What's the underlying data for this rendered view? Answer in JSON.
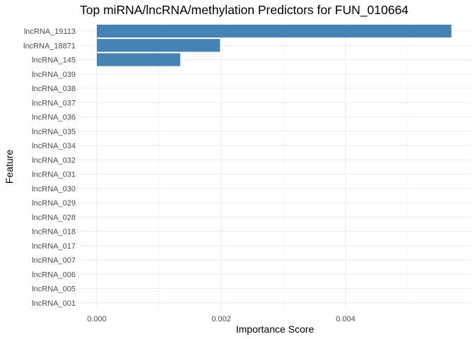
{
  "chart_data": {
    "type": "bar",
    "orientation": "horizontal",
    "title": "Top miRNA/lncRNA/methylation Predictors for FUN_010664",
    "xlabel": "Importance Score",
    "ylabel": "Feature",
    "xlim": [
      0,
      0.0058
    ],
    "xticks": [
      0.0,
      0.002,
      0.004
    ],
    "xtick_labels": [
      "0.000",
      "0.002",
      "0.004"
    ],
    "categories": [
      "lncRNA_19113",
      "lncRNA_18871",
      "lncRNA_145",
      "lncRNA_039",
      "lncRNA_038",
      "lncRNA_037",
      "lncRNA_036",
      "lncRNA_035",
      "lncRNA_034",
      "lncRNA_032",
      "lncRNA_031",
      "lncRNA_030",
      "lncRNA_029",
      "lncRNA_028",
      "lncRNA_018",
      "lncRNA_017",
      "lncRNA_007",
      "lncRNA_006",
      "lncRNA_005",
      "lncRNA_001"
    ],
    "values": [
      0.0057,
      0.00198,
      0.00134,
      0,
      0,
      0,
      0,
      0,
      0,
      0,
      0,
      0,
      0,
      0,
      0,
      0,
      0,
      0,
      0,
      0
    ],
    "bar_color": "#4682B4",
    "grid": true,
    "legend": "none"
  }
}
